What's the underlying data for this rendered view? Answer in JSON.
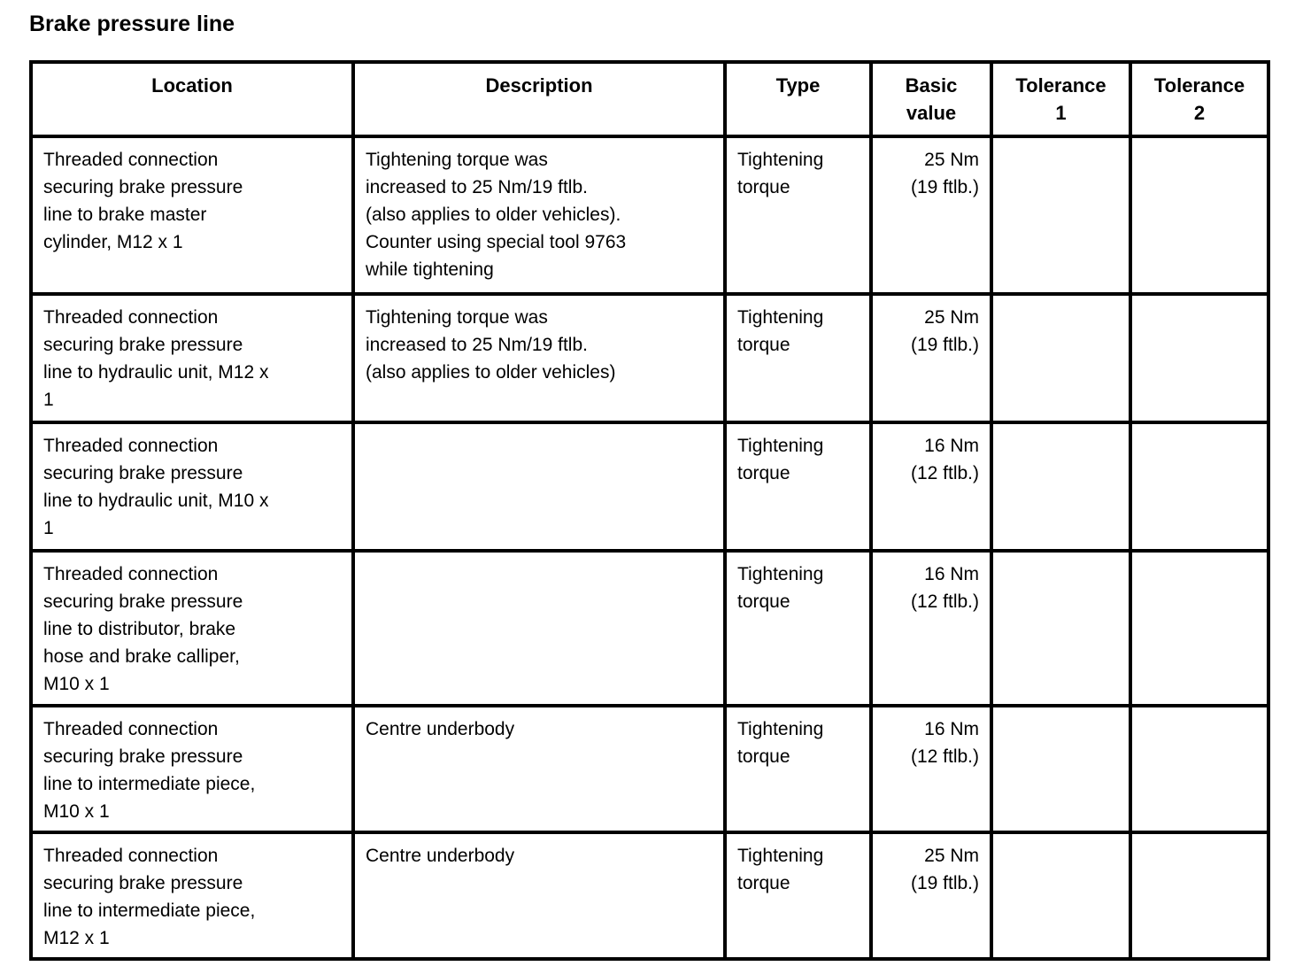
{
  "title": "Brake pressure line",
  "table": {
    "headers": {
      "location": "Location",
      "description": "Description",
      "type": "Type",
      "basic_value": "Basic\nvalue",
      "tolerance1": "Tolerance\n1",
      "tolerance2": "Tolerance\n2"
    },
    "rows": [
      {
        "location": "Threaded connection\nsecuring brake pressure\nline to brake master\ncylinder, M12 x 1",
        "description": "Tightening torque was\nincreased to 25 Nm/19 ftlb.\n(also applies to older vehicles).\nCounter using special tool 9763\nwhile tightening",
        "type": "Tightening\ntorque",
        "basic_value": "25 Nm\n(19 ftlb.)",
        "tolerance1": "",
        "tolerance2": ""
      },
      {
        "location": "Threaded connection\nsecuring brake pressure\nline to hydraulic unit, M12 x\n1",
        "description": "Tightening torque was\nincreased to 25 Nm/19 ftlb.\n(also applies to older vehicles)",
        "type": "Tightening\ntorque",
        "basic_value": "25 Nm\n(19 ftlb.)",
        "tolerance1": "",
        "tolerance2": ""
      },
      {
        "location": "Threaded connection\nsecuring brake pressure\nline to hydraulic unit, M10 x\n1",
        "description": "",
        "type": "Tightening\ntorque",
        "basic_value": "16 Nm\n(12 ftlb.)",
        "tolerance1": "",
        "tolerance2": ""
      },
      {
        "location": "Threaded connection\nsecuring brake pressure\nline to distributor, brake\nhose and brake calliper,\nM10 x 1",
        "description": "",
        "type": "Tightening\ntorque",
        "basic_value": "16 Nm\n(12 ftlb.)",
        "tolerance1": "",
        "tolerance2": ""
      },
      {
        "location": "Threaded connection\nsecuring brake pressure\nline to intermediate piece,\nM10 x 1",
        "description": "Centre underbody",
        "type": "Tightening\ntorque",
        "basic_value": "16 Nm\n(12 ftlb.)",
        "tolerance1": "",
        "tolerance2": ""
      },
      {
        "location": "Threaded connection\nsecuring brake pressure\nline to intermediate piece,\nM12 x 1",
        "description": "Centre underbody",
        "type": "Tightening\ntorque",
        "basic_value": "25 Nm\n(19 ftlb.)",
        "tolerance1": "",
        "tolerance2": ""
      }
    ]
  }
}
